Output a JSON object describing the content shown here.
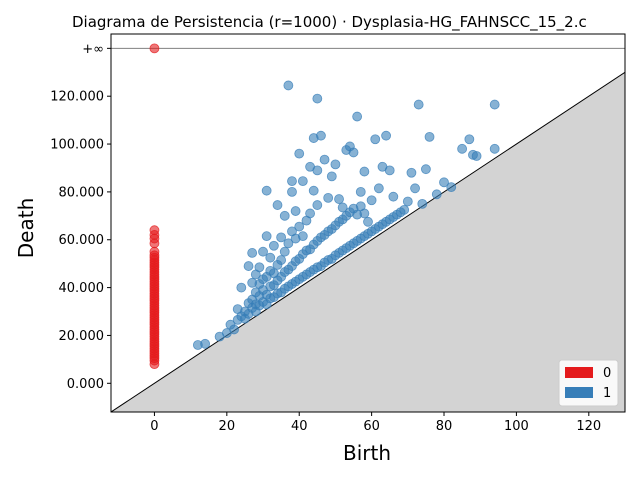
{
  "chart_data": {
    "type": "scatter",
    "title": "Diagrama de Persistencia (r=1000) · Dysplasia-HG_FAHNSCC_15_2.c",
    "xlabel": "Birth",
    "ylabel": "Death",
    "xlim": [
      -12,
      130
    ],
    "ylim": [
      -12000,
      146000
    ],
    "x_ticks": [
      0,
      20,
      40,
      60,
      80,
      100,
      120
    ],
    "x_tick_labels": [
      "0",
      "20",
      "40",
      "60",
      "80",
      "100",
      "120"
    ],
    "y_ticks": [
      0,
      20000,
      40000,
      60000,
      80000,
      100000,
      120000
    ],
    "y_tick_labels": [
      "0.000",
      "20.000",
      "40.000",
      "60.000",
      "80.000",
      "100.000",
      "120.000"
    ],
    "infinity_label": "+∞",
    "infinity_value": 140000,
    "legend_position": "lower-right",
    "colors": {
      "h0": "#e41a1c",
      "h1": "#377eb8",
      "diagonal_fill": "#d3d3d3",
      "infinity_line": "#808080"
    },
    "series": [
      {
        "name": "0",
        "color": "#e41a1c",
        "infinite": [
          [
            0,
            140000
          ]
        ],
        "points": [
          [
            0,
            8000
          ],
          [
            0,
            9500
          ],
          [
            0,
            10500
          ],
          [
            0,
            11500
          ],
          [
            0,
            12500
          ],
          [
            0,
            13500
          ],
          [
            0,
            14500
          ],
          [
            0,
            15500
          ],
          [
            0,
            16500
          ],
          [
            0,
            17500
          ],
          [
            0,
            18500
          ],
          [
            0,
            19500
          ],
          [
            0,
            20500
          ],
          [
            0,
            21500
          ],
          [
            0,
            22500
          ],
          [
            0,
            23500
          ],
          [
            0,
            24500
          ],
          [
            0,
            25500
          ],
          [
            0,
            26500
          ],
          [
            0,
            27500
          ],
          [
            0,
            28500
          ],
          [
            0,
            29500
          ],
          [
            0,
            30500
          ],
          [
            0,
            31500
          ],
          [
            0,
            32500
          ],
          [
            0,
            33500
          ],
          [
            0,
            34500
          ],
          [
            0,
            35500
          ],
          [
            0,
            36500
          ],
          [
            0,
            37500
          ],
          [
            0,
            38500
          ],
          [
            0,
            39500
          ],
          [
            0,
            40500
          ],
          [
            0,
            41500
          ],
          [
            0,
            42500
          ],
          [
            0,
            43500
          ],
          [
            0,
            44500
          ],
          [
            0,
            45500
          ],
          [
            0,
            46500
          ],
          [
            0,
            47500
          ],
          [
            0,
            48500
          ],
          [
            0,
            49500
          ],
          [
            0,
            50500
          ],
          [
            0,
            51500
          ],
          [
            0,
            52500
          ],
          [
            0,
            53500
          ],
          [
            0,
            55000
          ],
          [
            0,
            58500
          ],
          [
            0,
            60500
          ],
          [
            0,
            62000
          ],
          [
            0,
            64000
          ]
        ]
      },
      {
        "name": "1",
        "color": "#377eb8",
        "points": [
          [
            12,
            16000
          ],
          [
            14,
            16500
          ],
          [
            18,
            19500
          ],
          [
            20,
            21000
          ],
          [
            21,
            24500
          ],
          [
            22,
            22500
          ],
          [
            23,
            26500
          ],
          [
            23,
            31000
          ],
          [
            24,
            28000
          ],
          [
            24,
            40000
          ],
          [
            25,
            27000
          ],
          [
            25,
            30000
          ],
          [
            26,
            29000
          ],
          [
            26,
            33500
          ],
          [
            26,
            49000
          ],
          [
            27,
            31500
          ],
          [
            27,
            35000
          ],
          [
            27,
            42000
          ],
          [
            27,
            54500
          ],
          [
            28,
            30000
          ],
          [
            28,
            33000
          ],
          [
            28,
            38000
          ],
          [
            28,
            45500
          ],
          [
            29,
            32500
          ],
          [
            29,
            36500
          ],
          [
            29,
            41500
          ],
          [
            29,
            48500
          ],
          [
            30,
            34000
          ],
          [
            30,
            39000
          ],
          [
            30,
            43500
          ],
          [
            30,
            55000
          ],
          [
            31,
            33000
          ],
          [
            31,
            37000
          ],
          [
            31,
            44500
          ],
          [
            31,
            61500
          ],
          [
            31,
            80500
          ],
          [
            32,
            35500
          ],
          [
            32,
            40500
          ],
          [
            32,
            47000
          ],
          [
            32,
            52500
          ],
          [
            33,
            36000
          ],
          [
            33,
            41000
          ],
          [
            33,
            46000
          ],
          [
            33,
            57500
          ],
          [
            34,
            37500
          ],
          [
            34,
            43000
          ],
          [
            34,
            49500
          ],
          [
            34,
            74500
          ],
          [
            35,
            38000
          ],
          [
            35,
            44500
          ],
          [
            35,
            51500
          ],
          [
            35,
            61000
          ],
          [
            36,
            39500
          ],
          [
            36,
            46500
          ],
          [
            36,
            55000
          ],
          [
            36,
            70000
          ],
          [
            37,
            40500
          ],
          [
            37,
            47500
          ],
          [
            37,
            58500
          ],
          [
            37,
            124500
          ],
          [
            38,
            41500
          ],
          [
            38,
            49000
          ],
          [
            38,
            63500
          ],
          [
            38,
            80000
          ],
          [
            38,
            84500
          ],
          [
            39,
            42500
          ],
          [
            39,
            51000
          ],
          [
            39,
            60500
          ],
          [
            39,
            72000
          ],
          [
            40,
            43500
          ],
          [
            40,
            52000
          ],
          [
            40,
            65500
          ],
          [
            40,
            96000
          ],
          [
            41,
            44500
          ],
          [
            41,
            54000
          ],
          [
            41,
            61500
          ],
          [
            41,
            84500
          ],
          [
            42,
            45500
          ],
          [
            42,
            55500
          ],
          [
            42,
            68000
          ],
          [
            43,
            46500
          ],
          [
            43,
            56000
          ],
          [
            43,
            71000
          ],
          [
            43,
            90500
          ],
          [
            44,
            47500
          ],
          [
            44,
            58000
          ],
          [
            44,
            80500
          ],
          [
            44,
            102500
          ],
          [
            45,
            48500
          ],
          [
            45,
            59500
          ],
          [
            45,
            74500
          ],
          [
            45,
            89000
          ],
          [
            45,
            119000
          ],
          [
            46,
            49000
          ],
          [
            46,
            61000
          ],
          [
            46,
            103500
          ],
          [
            47,
            50500
          ],
          [
            47,
            62000
          ],
          [
            47,
            93500
          ],
          [
            48,
            51500
          ],
          [
            48,
            63500
          ],
          [
            48,
            77500
          ],
          [
            49,
            52000
          ],
          [
            49,
            64500
          ],
          [
            49,
            86500
          ],
          [
            50,
            53500
          ],
          [
            50,
            66000
          ],
          [
            50,
            91500
          ],
          [
            51,
            54500
          ],
          [
            51,
            67500
          ],
          [
            51,
            77000
          ],
          [
            52,
            55500
          ],
          [
            52,
            68500
          ],
          [
            52,
            73500
          ],
          [
            53,
            56500
          ],
          [
            53,
            70000
          ],
          [
            53,
            97500
          ],
          [
            54,
            57500
          ],
          [
            54,
            71500
          ],
          [
            54,
            99000
          ],
          [
            55,
            58500
          ],
          [
            55,
            73000
          ],
          [
            55,
            96500
          ],
          [
            56,
            59500
          ],
          [
            56,
            70500
          ],
          [
            56,
            111500
          ],
          [
            57,
            60500
          ],
          [
            57,
            74000
          ],
          [
            57,
            80000
          ],
          [
            58,
            61500
          ],
          [
            58,
            71000
          ],
          [
            58,
            88500
          ],
          [
            59,
            62500
          ],
          [
            59,
            67500
          ],
          [
            60,
            63500
          ],
          [
            60,
            76500
          ],
          [
            61,
            64500
          ],
          [
            61,
            102000
          ],
          [
            62,
            65500
          ],
          [
            62,
            81500
          ],
          [
            63,
            66500
          ],
          [
            63,
            90500
          ],
          [
            64,
            67500
          ],
          [
            64,
            103500
          ],
          [
            65,
            68500
          ],
          [
            65,
            89000
          ],
          [
            66,
            69500
          ],
          [
            66,
            78000
          ],
          [
            67,
            70500
          ],
          [
            68,
            71500
          ],
          [
            69,
            72500
          ],
          [
            70,
            76000
          ],
          [
            71,
            88000
          ],
          [
            72,
            81500
          ],
          [
            73,
            116500
          ],
          [
            74,
            75000
          ],
          [
            75,
            89500
          ],
          [
            76,
            103000
          ],
          [
            78,
            79000
          ],
          [
            80,
            84000
          ],
          [
            82,
            82000
          ],
          [
            85,
            98000
          ],
          [
            87,
            102000
          ],
          [
            88,
            95500
          ],
          [
            89,
            95000
          ],
          [
            94,
            116500
          ],
          [
            94,
            98000
          ]
        ]
      }
    ]
  }
}
